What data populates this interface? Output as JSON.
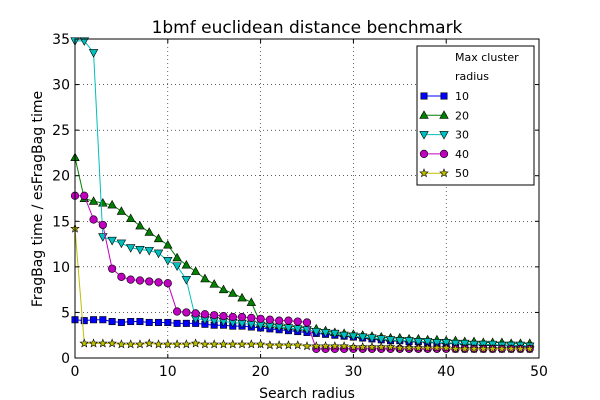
{
  "chart_data": {
    "type": "line",
    "title": "1bmf euclidean distance benchmark",
    "xlabel": "Search radius",
    "ylabel": "FragBag time / esFragBag time",
    "xlim": [
      0,
      50
    ],
    "ylim": [
      0,
      35
    ],
    "xticks": [
      "0",
      "10",
      "20",
      "30",
      "40",
      "50"
    ],
    "yticks": [
      "0",
      "5",
      "10",
      "15",
      "20",
      "25",
      "30",
      "35"
    ],
    "grid": true,
    "legend_position": "top-right",
    "legend_title_line1": "Max cluster",
    "legend_title_line2": "radius",
    "x": [
      0,
      1,
      2,
      3,
      4,
      5,
      6,
      7,
      8,
      9,
      10,
      11,
      12,
      13,
      14,
      15,
      16,
      17,
      18,
      19,
      20,
      21,
      22,
      23,
      24,
      25,
      26,
      27,
      28,
      29,
      30,
      31,
      32,
      33,
      34,
      35,
      36,
      37,
      38,
      39,
      40,
      41,
      42,
      43,
      44,
      45,
      46,
      47,
      48,
      49
    ],
    "series": [
      {
        "name": "10",
        "color": "#0000ff",
        "marker": "square",
        "values": [
          4.2,
          4.1,
          4.2,
          4.2,
          4.0,
          3.9,
          4.0,
          4.0,
          3.9,
          3.9,
          3.9,
          3.8,
          3.8,
          3.8,
          3.7,
          3.6,
          3.6,
          3.5,
          3.5,
          3.4,
          3.3,
          3.2,
          3.1,
          3.0,
          2.9,
          2.8,
          2.7,
          2.6,
          2.5,
          2.4,
          2.3,
          2.2,
          2.1,
          2.0,
          1.9,
          1.9,
          1.8,
          1.8,
          1.7,
          1.7,
          1.6,
          1.6,
          1.5,
          1.5,
          1.5,
          1.4,
          1.4,
          1.4,
          1.3,
          1.3
        ]
      },
      {
        "name": "20",
        "color": "#007f00",
        "marker": "triangle-up",
        "values": [
          22.0,
          17.5,
          17.2,
          17.0,
          16.8,
          16.1,
          15.3,
          14.5,
          13.8,
          13.1,
          12.4,
          11.0,
          10.2,
          9.5,
          8.7,
          8.1,
          7.5,
          7.1,
          6.6,
          6.1,
          3.8,
          3.7,
          3.6,
          3.5,
          3.4,
          3.3,
          3.2,
          3.0,
          2.8,
          2.7,
          2.6,
          2.5,
          2.4,
          2.3,
          2.2,
          2.2,
          2.1,
          2.1,
          2.0,
          2.0,
          1.9,
          1.9,
          1.8,
          1.8,
          1.7,
          1.7,
          1.7,
          1.6,
          1.6,
          1.6
        ]
      },
      {
        "name": "30",
        "color": "#00bfbf",
        "marker": "triangle-down",
        "values": [
          34.8,
          34.8,
          33.5,
          13.3,
          12.9,
          12.6,
          12.1,
          11.9,
          11.8,
          11.5,
          10.7,
          10.1,
          8.6,
          4.3,
          4.2,
          4.1,
          4.0,
          3.9,
          3.8,
          3.7,
          3.6,
          3.5,
          3.4,
          3.3,
          3.2,
          3.1,
          2.9,
          2.8,
          2.7,
          2.5,
          2.4,
          2.3,
          2.2,
          2.1,
          2.0,
          1.9,
          1.9,
          1.8,
          1.8,
          1.7,
          1.7,
          1.6,
          1.6,
          1.5,
          1.5,
          1.5,
          1.4,
          1.4,
          1.4,
          1.3
        ]
      },
      {
        "name": "40",
        "color": "#bf00bf",
        "marker": "circle",
        "values": [
          17.8,
          17.8,
          15.2,
          14.6,
          9.8,
          8.9,
          8.6,
          8.5,
          8.4,
          8.3,
          8.2,
          5.1,
          5.0,
          4.9,
          4.8,
          4.7,
          4.6,
          4.5,
          4.5,
          4.4,
          4.3,
          4.2,
          4.1,
          4.1,
          4.0,
          3.9,
          1.0,
          1.0,
          1.0,
          1.0,
          1.0,
          1.0,
          1.0,
          1.0,
          1.0,
          1.0,
          1.0,
          1.0,
          1.0,
          1.0,
          1.0,
          1.0,
          1.0,
          1.0,
          1.0,
          1.0,
          1.0,
          1.0,
          1.0,
          1.0
        ]
      },
      {
        "name": "50",
        "color": "#bfbf00",
        "marker": "star",
        "values": [
          14.2,
          1.6,
          1.6,
          1.6,
          1.6,
          1.5,
          1.5,
          1.5,
          1.6,
          1.5,
          1.5,
          1.5,
          1.5,
          1.6,
          1.5,
          1.5,
          1.5,
          1.5,
          1.5,
          1.5,
          1.5,
          1.4,
          1.4,
          1.4,
          1.4,
          1.3,
          1.3,
          1.3,
          1.3,
          1.3,
          1.2,
          1.2,
          1.2,
          1.2,
          1.2,
          1.1,
          1.1,
          1.1,
          1.1,
          1.1,
          1.1,
          1.0,
          1.0,
          1.0,
          1.0,
          1.0,
          1.0,
          1.0,
          1.0,
          1.0
        ]
      }
    ]
  }
}
